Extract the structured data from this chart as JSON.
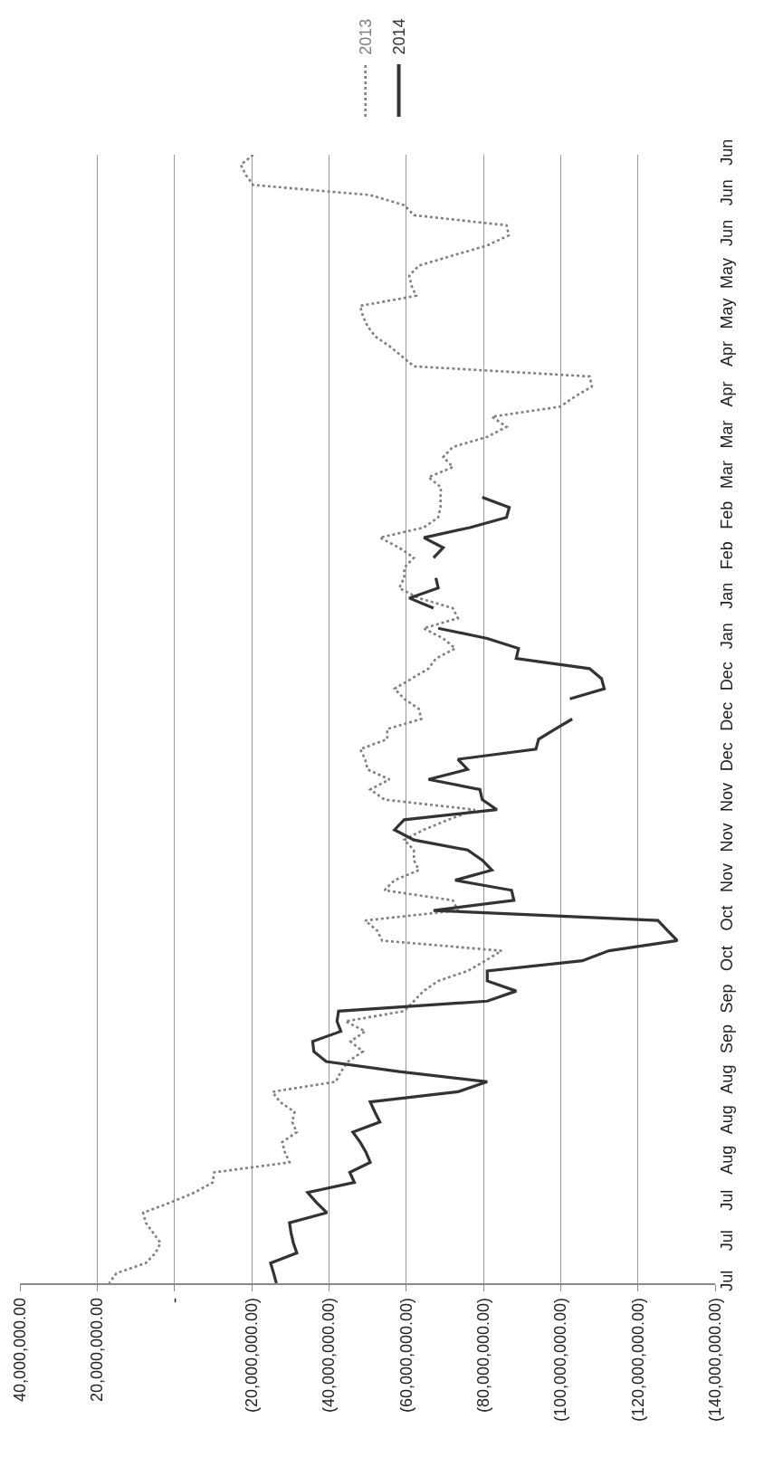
{
  "chart_data": {
    "type": "line",
    "orientation": "horizontal",
    "categories": [
      "Jun",
      null,
      null,
      null,
      "Jun",
      null,
      null,
      null,
      "Jun",
      null,
      null,
      null,
      "May",
      null,
      null,
      null,
      "May",
      null,
      null,
      null,
      "Apr",
      null,
      null,
      null,
      "Apr",
      null,
      null,
      null,
      "Mar",
      null,
      null,
      null,
      "Mar",
      null,
      null,
      null,
      "Feb",
      null,
      null,
      null,
      "Feb",
      null,
      null,
      null,
      "Jan",
      null,
      null,
      null,
      "Jan",
      null,
      null,
      null,
      "Dec",
      null,
      null,
      null,
      "Dec",
      null,
      null,
      null,
      "Dec",
      null,
      null,
      null,
      "Nov",
      null,
      null,
      null,
      "Nov",
      null,
      null,
      null,
      "Nov",
      null,
      null,
      null,
      "Oct",
      null,
      null,
      null,
      "Oct",
      null,
      null,
      null,
      "Sep",
      null,
      null,
      null,
      "Sep",
      null,
      null,
      null,
      "Aug",
      null,
      null,
      null,
      "Aug",
      null,
      null,
      null,
      "Aug",
      null,
      null,
      null,
      "Jul",
      null,
      null,
      null,
      "Jul",
      null,
      null,
      null,
      "Jul"
    ],
    "series": [
      {
        "name": "2013",
        "color": "#808080",
        "line_style": "dotted",
        "values": [
          -20400000,
          -17200000,
          -18500000,
          -20400000,
          -50700000,
          -59500000,
          -62000000,
          -86000000,
          -86600000,
          -81000000,
          -72100000,
          -63300000,
          -60800000,
          -61400000,
          -62600000,
          -48100000,
          -48800000,
          -50000000,
          -51900000,
          -55700000,
          -58900000,
          -62000000,
          -107500000,
          -108100000,
          -103700000,
          -99900000,
          -82200000,
          -86000000,
          -81000000,
          -72100000,
          -69600000,
          -72100000,
          -65800000,
          -69000000,
          -68900000,
          -68900000,
          -68300000,
          -64500000,
          -53200000,
          -58200000,
          -62000000,
          -59500000,
          -59500000,
          -58200000,
          -63300000,
          -72100000,
          -73400000,
          -64500000,
          -69600000,
          -72700000,
          -67700000,
          -65800000,
          -61400000,
          -57000000,
          -59500000,
          -63300000,
          -63900000,
          -55100000,
          -55100000,
          -48100000,
          -49400000,
          -50000000,
          -55700000,
          -50700000,
          -54400000,
          -77800000,
          -70900000,
          -64500000,
          -59500000,
          -62000000,
          -62000000,
          -63300000,
          -57000000,
          -54400000,
          -72100000,
          -73400000,
          -49400000,
          -52500000,
          -53800000,
          -84700000,
          -80500000,
          -75900000,
          -68300000,
          -64500000,
          -62000000,
          -59500000,
          -44300000,
          -49400000,
          -45600000,
          -48800000,
          -45000000,
          -43100000,
          -41800000,
          -25400000,
          -27300000,
          -31100000,
          -30500000,
          -31700000,
          -27900000,
          -28600000,
          -29800000,
          -10300000,
          -9900000,
          -5200000,
          1100000,
          8100000,
          7400000,
          5500000,
          3600000,
          4900000,
          7400000,
          15000000,
          16900000
        ]
      },
      {
        "name": "2014",
        "color": "#333333",
        "line_style": "solid",
        "values": [
          null,
          null,
          null,
          null,
          null,
          null,
          null,
          null,
          null,
          null,
          null,
          null,
          null,
          null,
          null,
          null,
          null,
          null,
          null,
          null,
          null,
          null,
          null,
          null,
          null,
          null,
          null,
          null,
          null,
          null,
          null,
          null,
          null,
          null,
          -79700000,
          -86700000,
          -86000000,
          -76500000,
          -64600000,
          -69600000,
          -67100000,
          null,
          -67700000,
          -68300000,
          -60800000,
          -67100000,
          null,
          -68300000,
          -81000000,
          -89100000,
          -88500000,
          -107500000,
          -110600000,
          -111300000,
          -102400000,
          null,
          -103000000,
          -98600000,
          -94300000,
          -93600000,
          -73400000,
          -75900000,
          -65800000,
          -79100000,
          -79700000,
          -83500000,
          -59500000,
          -57000000,
          -62000000,
          -75900000,
          -79700000,
          -82200000,
          -72700000,
          -87300000,
          -87900000,
          -67100000,
          -125200000,
          -127700000,
          -130200000,
          -112500000,
          -105600000,
          -81000000,
          -81000000,
          -88500000,
          -81000000,
          -42500000,
          -42100000,
          -43100000,
          -35800000,
          -36100000,
          -39300000,
          -58200000,
          -81000000,
          -73400000,
          -50700000,
          -51900000,
          -53200000,
          -46200000,
          -48100000,
          -49600000,
          -50700000,
          -45400000,
          -46600000,
          -34500000,
          -36800000,
          -39500000,
          -29800000,
          -30200000,
          -30800000,
          -31700000,
          -24900000,
          -25700000,
          -26400000
        ]
      }
    ],
    "xlim": [
      40000000,
      -140000000
    ],
    "xticks": [
      {
        "value": 40000000,
        "label": "40,000,000.00"
      },
      {
        "value": 20000000,
        "label": "20,000,000.00"
      },
      {
        "value": 0,
        "label": "-"
      },
      {
        "value": -20000000,
        "label": "(20,000,000.00)"
      },
      {
        "value": -40000000,
        "label": "(40,000,000.00)"
      },
      {
        "value": -60000000,
        "label": "(60,000,000.00)"
      },
      {
        "value": -80000000,
        "label": "(80,000,000.00)"
      },
      {
        "value": -100000000,
        "label": "(100,000,000.00)"
      },
      {
        "value": -120000000,
        "label": "(120,000,000.00)"
      },
      {
        "value": -140000000,
        "label": "(140,000,000.00)"
      }
    ],
    "grid": "x",
    "legend": "top",
    "marker": "none"
  }
}
